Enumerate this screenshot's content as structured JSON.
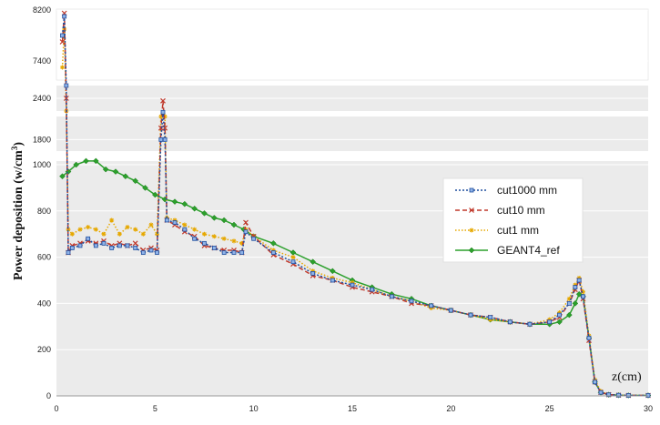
{
  "chart_data": {
    "type": "line",
    "title": "",
    "xlabel": "z(cm)",
    "ylabel": "Power deposition (w/cm",
    "ylabel_sup": "3",
    "ylabel_close": ")",
    "xlim": [
      0,
      30
    ],
    "x_ticks": [
      "0",
      "5",
      "10",
      "15",
      "20",
      "25",
      "30"
    ],
    "y_ticks_lower": [
      "0",
      "200",
      "400",
      "600",
      "800",
      "1000"
    ],
    "y_ticks_mid": [
      "1800",
      "2400"
    ],
    "y_ticks_top": [
      "7400",
      "8200"
    ],
    "ylim_segments": [
      [
        0,
        1000
      ],
      [
        1700,
        2000
      ],
      [
        2300,
        2500
      ],
      [
        7100,
        8200
      ]
    ],
    "grid": true,
    "legend_position": "center-right",
    "colors": {
      "cut1000 mm": "#1f4e9e",
      "cut10 mm": "#c0392b",
      "cut1 mm": "#e6a800",
      "GEANT4_ref": "#2ca02c"
    },
    "series": [
      {
        "name": "cut1000 mm",
        "x": [
          0.3,
          0.4,
          0.5,
          0.6,
          0.8,
          1.2,
          1.6,
          2.0,
          2.4,
          2.8,
          3.2,
          3.6,
          4.0,
          4.4,
          4.8,
          5.1,
          5.3,
          5.4,
          5.5,
          5.6,
          6.0,
          6.5,
          7.0,
          7.5,
          8.0,
          8.5,
          9.0,
          9.4,
          9.6,
          10.0,
          11.0,
          12.0,
          13.0,
          14.0,
          15.0,
          16.0,
          17.0,
          18.0,
          19.0,
          20.0,
          21.0,
          22.0,
          23.0,
          24.0,
          25.0,
          25.5,
          26.0,
          26.3,
          26.5,
          26.7,
          27.0,
          27.3,
          27.6,
          28.0,
          28.5,
          29.0,
          30.0
        ],
        "y": [
          7800,
          8100,
          2500,
          620,
          640,
          650,
          680,
          650,
          660,
          640,
          650,
          650,
          640,
          620,
          630,
          620,
          1800,
          2200,
          1800,
          760,
          750,
          720,
          680,
          660,
          640,
          620,
          620,
          620,
          710,
          680,
          620,
          580,
          530,
          500,
          480,
          460,
          430,
          410,
          390,
          370,
          350,
          340,
          320,
          310,
          320,
          350,
          400,
          470,
          500,
          430,
          250,
          60,
          15,
          5,
          3,
          2,
          2
        ]
      },
      {
        "name": "cut10 mm",
        "x": [
          0.3,
          0.4,
          0.5,
          0.6,
          0.8,
          1.2,
          1.6,
          2.0,
          2.4,
          2.8,
          3.2,
          3.6,
          4.0,
          4.4,
          4.8,
          5.1,
          5.3,
          5.4,
          5.5,
          5.6,
          6.0,
          6.5,
          7.0,
          7.5,
          8.0,
          8.5,
          9.0,
          9.4,
          9.6,
          10.0,
          11.0,
          12.0,
          13.0,
          14.0,
          15.0,
          16.0,
          17.0,
          18.0,
          19.0,
          20.0,
          21.0,
          22.0,
          23.0,
          24.0,
          25.0,
          25.5,
          26.0,
          26.3,
          26.5,
          26.7,
          27.0,
          27.3,
          27.6,
          28.0,
          28.5,
          29.0,
          30.0
        ],
        "y": [
          7700,
          8150,
          2400,
          620,
          650,
          660,
          670,
          660,
          670,
          650,
          660,
          650,
          660,
          630,
          640,
          630,
          1900,
          2380,
          1900,
          760,
          740,
          710,
          690,
          650,
          640,
          630,
          630,
          620,
          750,
          690,
          610,
          570,
          520,
          500,
          470,
          450,
          430,
          400,
          390,
          370,
          350,
          340,
          320,
          310,
          320,
          340,
          400,
          460,
          500,
          420,
          240,
          60,
          15,
          5,
          3,
          2,
          2
        ]
      },
      {
        "name": "cut1 mm",
        "x": [
          0.3,
          0.4,
          0.5,
          0.6,
          0.8,
          1.2,
          1.6,
          2.0,
          2.4,
          2.8,
          3.2,
          3.6,
          4.0,
          4.4,
          4.8,
          5.1,
          5.3,
          5.4,
          5.5,
          5.6,
          6.0,
          6.5,
          7.0,
          7.5,
          8.0,
          8.5,
          9.0,
          9.4,
          9.6,
          10.0,
          11.0,
          12.0,
          13.0,
          14.0,
          15.0,
          16.0,
          17.0,
          18.0,
          19.0,
          20.0,
          21.0,
          22.0,
          23.0,
          24.0,
          25.0,
          25.5,
          26.0,
          26.3,
          26.5,
          26.7,
          27.0,
          27.3,
          27.6,
          28.0,
          28.5,
          29.0,
          30.0
        ],
        "y": [
          7300,
          7900,
          2300,
          720,
          700,
          720,
          730,
          720,
          700,
          760,
          700,
          730,
          720,
          700,
          740,
          700,
          2000,
          2100,
          2000,
          770,
          760,
          740,
          720,
          700,
          690,
          680,
          670,
          660,
          720,
          690,
          630,
          600,
          540,
          510,
          490,
          460,
          430,
          410,
          380,
          370,
          350,
          330,
          320,
          310,
          330,
          360,
          420,
          480,
          510,
          450,
          260,
          70,
          20,
          5,
          3,
          2,
          2
        ]
      },
      {
        "name": "GEANT4_ref",
        "x": [
          0.3,
          0.6,
          1.0,
          1.5,
          2.0,
          2.5,
          3.0,
          3.5,
          4.0,
          4.5,
          5.0,
          5.5,
          6.0,
          6.5,
          7.0,
          7.5,
          8.0,
          8.5,
          9.0,
          9.5,
          10.0,
          11.0,
          12.0,
          13.0,
          14.0,
          15.0,
          16.0,
          17.0,
          18.0,
          19.0,
          20.0,
          21.0,
          22.0,
          23.0,
          24.0,
          25.0,
          25.5,
          26.0,
          26.3,
          26.5,
          26.7,
          27.0,
          27.3,
          27.6,
          28.0,
          28.5,
          29.0,
          30.0
        ],
        "y": [
          950,
          970,
          1000,
          1010,
          1010,
          980,
          970,
          950,
          930,
          900,
          870,
          850,
          840,
          830,
          810,
          790,
          770,
          760,
          740,
          720,
          690,
          660,
          620,
          580,
          540,
          500,
          470,
          440,
          420,
          390,
          370,
          350,
          330,
          320,
          310,
          310,
          320,
          350,
          400,
          440,
          430,
          250,
          60,
          15,
          5,
          3,
          2,
          2
        ]
      }
    ]
  }
}
